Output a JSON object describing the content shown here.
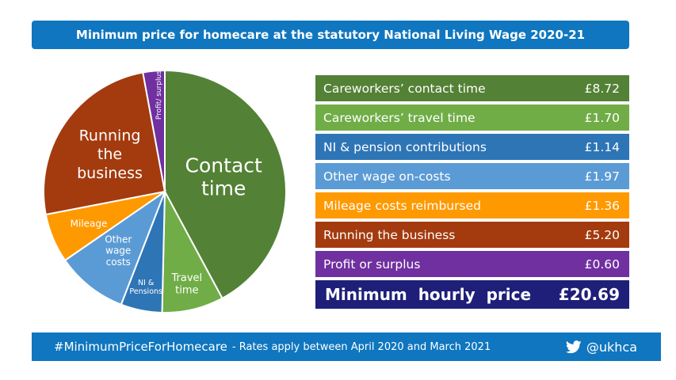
{
  "title": "Minimum  price for homecare at the statutory National Living Wage 2020-21",
  "chart_data": {
    "type": "pie",
    "title": "Minimum  price for homecare at the statutory National Living Wage 2020-21",
    "unit": "£ per hour",
    "slices": [
      {
        "key": "contact",
        "label_lines": [
          "Contact",
          "time"
        ],
        "legend": "Careworkers’ contact time",
        "value": 8.72,
        "display": "£8.72",
        "color": "#538135"
      },
      {
        "key": "travel",
        "label_lines": [
          "Travel",
          "time"
        ],
        "legend": "Careworkers’ travel time",
        "value": 1.7,
        "display": "£1.70",
        "color": "#70ad47"
      },
      {
        "key": "ni",
        "label_lines": [
          "NI &",
          "Pensions"
        ],
        "legend": "NI & pension contributions",
        "value": 1.14,
        "display": "£1.14",
        "color": "#2e75b6"
      },
      {
        "key": "oncosts",
        "label_lines": [
          "Other",
          "wage",
          "costs"
        ],
        "legend": "Other wage on-costs",
        "value": 1.97,
        "display": "£1.97",
        "color": "#5b9bd5"
      },
      {
        "key": "mileage",
        "label_lines": [
          "Mileage"
        ],
        "legend": "Mileage costs reimbursed",
        "value": 1.36,
        "display": "£1.36",
        "color": "#ff9900"
      },
      {
        "key": "running",
        "label_lines": [
          "Running",
          "the",
          "business"
        ],
        "legend": "Running the business",
        "value": 5.2,
        "display": "£5.20",
        "color": "#a33b0f"
      },
      {
        "key": "profit",
        "label_lines": [
          "Profit/ surplus"
        ],
        "legend": "Profit or surplus",
        "value": 0.6,
        "display": "£0.60",
        "color": "#7030a0"
      }
    ],
    "total": {
      "label": "Minimum  hourly  price",
      "display": "£20.69",
      "value": 20.69,
      "color": "#1f1f7a"
    }
  },
  "footer": {
    "hashtag": "#MinimumPriceForHomecare",
    "rates": " - Rates apply between April 2020 and March 2021",
    "handle": "@ukhca"
  },
  "colors": {
    "banner": "#0f76bf"
  }
}
